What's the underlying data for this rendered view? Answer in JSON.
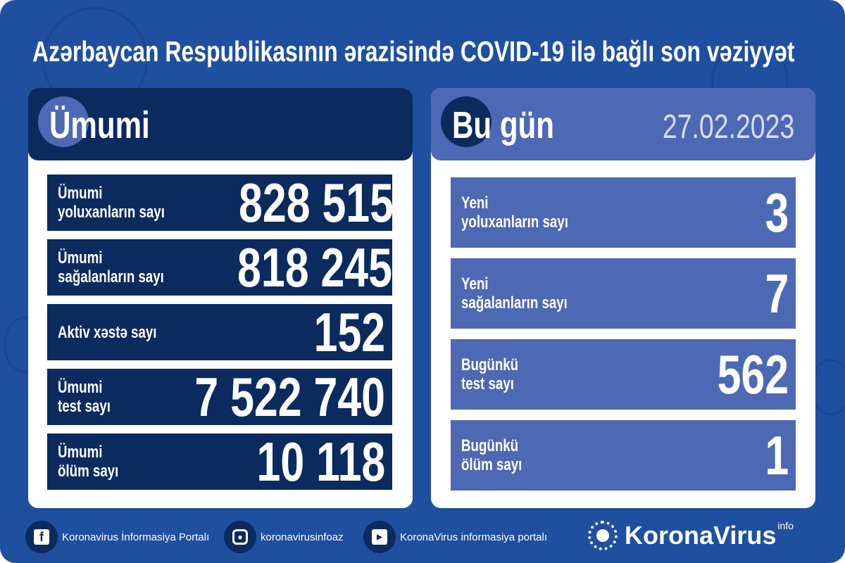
{
  "title": "Azərbaycan Respublikasının ərazisində COVID-19 ilə bağlı son vəziyyət",
  "colors": {
    "background": "#1f4f9f",
    "navy": "#0b2a5e",
    "today_accent": "#4e69b3"
  },
  "total": {
    "heading": "Ümumi",
    "rows": [
      {
        "label_1": "Ümumi",
        "label_2": "yoluxanların sayı",
        "value": "828 515"
      },
      {
        "label_1": "Ümumi",
        "label_2": "sağalanların sayı",
        "value": "818 245"
      },
      {
        "label_1": "Aktiv xəstə sayı",
        "label_2": "",
        "value": "152"
      },
      {
        "label_1": "Ümumi",
        "label_2": "test sayı",
        "value": "7 522 740"
      },
      {
        "label_1": "Ümumi",
        "label_2": "ölüm sayı",
        "value": "10 118"
      }
    ]
  },
  "today": {
    "heading": "Bu gün",
    "date": "27.02.2023",
    "rows": [
      {
        "label_1": "Yeni",
        "label_2": "yoluxanların sayı",
        "value": "3"
      },
      {
        "label_1": "Yeni",
        "label_2": "sağalanların sayı",
        "value": "7"
      },
      {
        "label_1": "Bugünkü",
        "label_2": "test sayı",
        "value": "562"
      },
      {
        "label_1": "Bugünkü",
        "label_2": "ölüm sayı",
        "value": "1"
      }
    ]
  },
  "footer": {
    "facebook": {
      "icon": "facebook-icon",
      "label": "Koronavirus İnformasiya Portalı"
    },
    "instagram": {
      "icon": "instagram-icon",
      "label": "koronavirusinfoaz"
    },
    "youtube": {
      "icon": "youtube-icon",
      "label": "KoronaVirus informasiya portalı"
    },
    "brand": {
      "name": "KoronaVirus",
      "sup": "info"
    }
  }
}
